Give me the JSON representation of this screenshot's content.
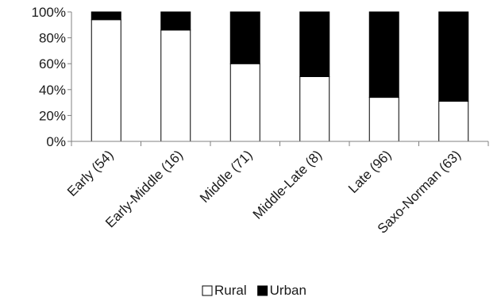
{
  "chart_data": {
    "type": "bar",
    "stacked": true,
    "percent": true,
    "categories": [
      "Early (54)",
      "Early-Middle (16)",
      "Middle (71)",
      "Middle-Late  (8)",
      "Late (96)",
      "Saxo-Norman (63)"
    ],
    "series": [
      {
        "name": "Rural",
        "color": "#ffffff",
        "values": [
          94,
          86,
          60,
          50,
          34,
          31
        ]
      },
      {
        "name": "Urban",
        "color": "#000000",
        "values": [
          6,
          14,
          40,
          50,
          66,
          69
        ]
      }
    ],
    "ylim": [
      0,
      100
    ],
    "yticks": [
      "0%",
      "20%",
      "40%",
      "60%",
      "80%",
      "100%"
    ],
    "title": "",
    "xlabel": "",
    "ylabel": "",
    "grid": false,
    "legend": "bottom"
  }
}
